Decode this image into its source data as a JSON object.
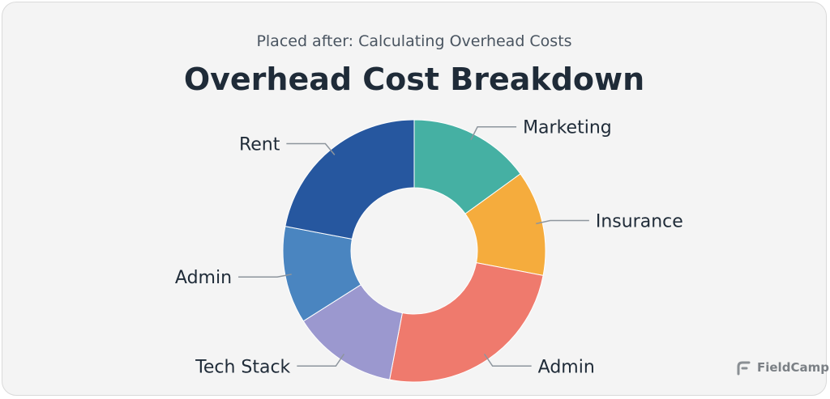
{
  "header": {
    "subtitle": "Placed after: Calculating Overhead Costs",
    "title": "Overhead Cost Breakdown"
  },
  "brand": {
    "name": "FieldCamp",
    "icon": "fieldcamp-logo-icon"
  },
  "chart_data": {
    "type": "pie",
    "style": "donut",
    "title": "Overhead Cost Breakdown",
    "categories": [
      "Marketing",
      "Insurance",
      "Admin",
      "Tech Stack",
      "Admin",
      "Rent"
    ],
    "values": [
      15,
      13,
      25,
      13,
      12,
      22
    ],
    "colors": [
      "#45b0a3",
      "#f5ac3d",
      "#ef7a6d",
      "#9b98cf",
      "#4a85c0",
      "#26579f"
    ],
    "legend": "none"
  }
}
